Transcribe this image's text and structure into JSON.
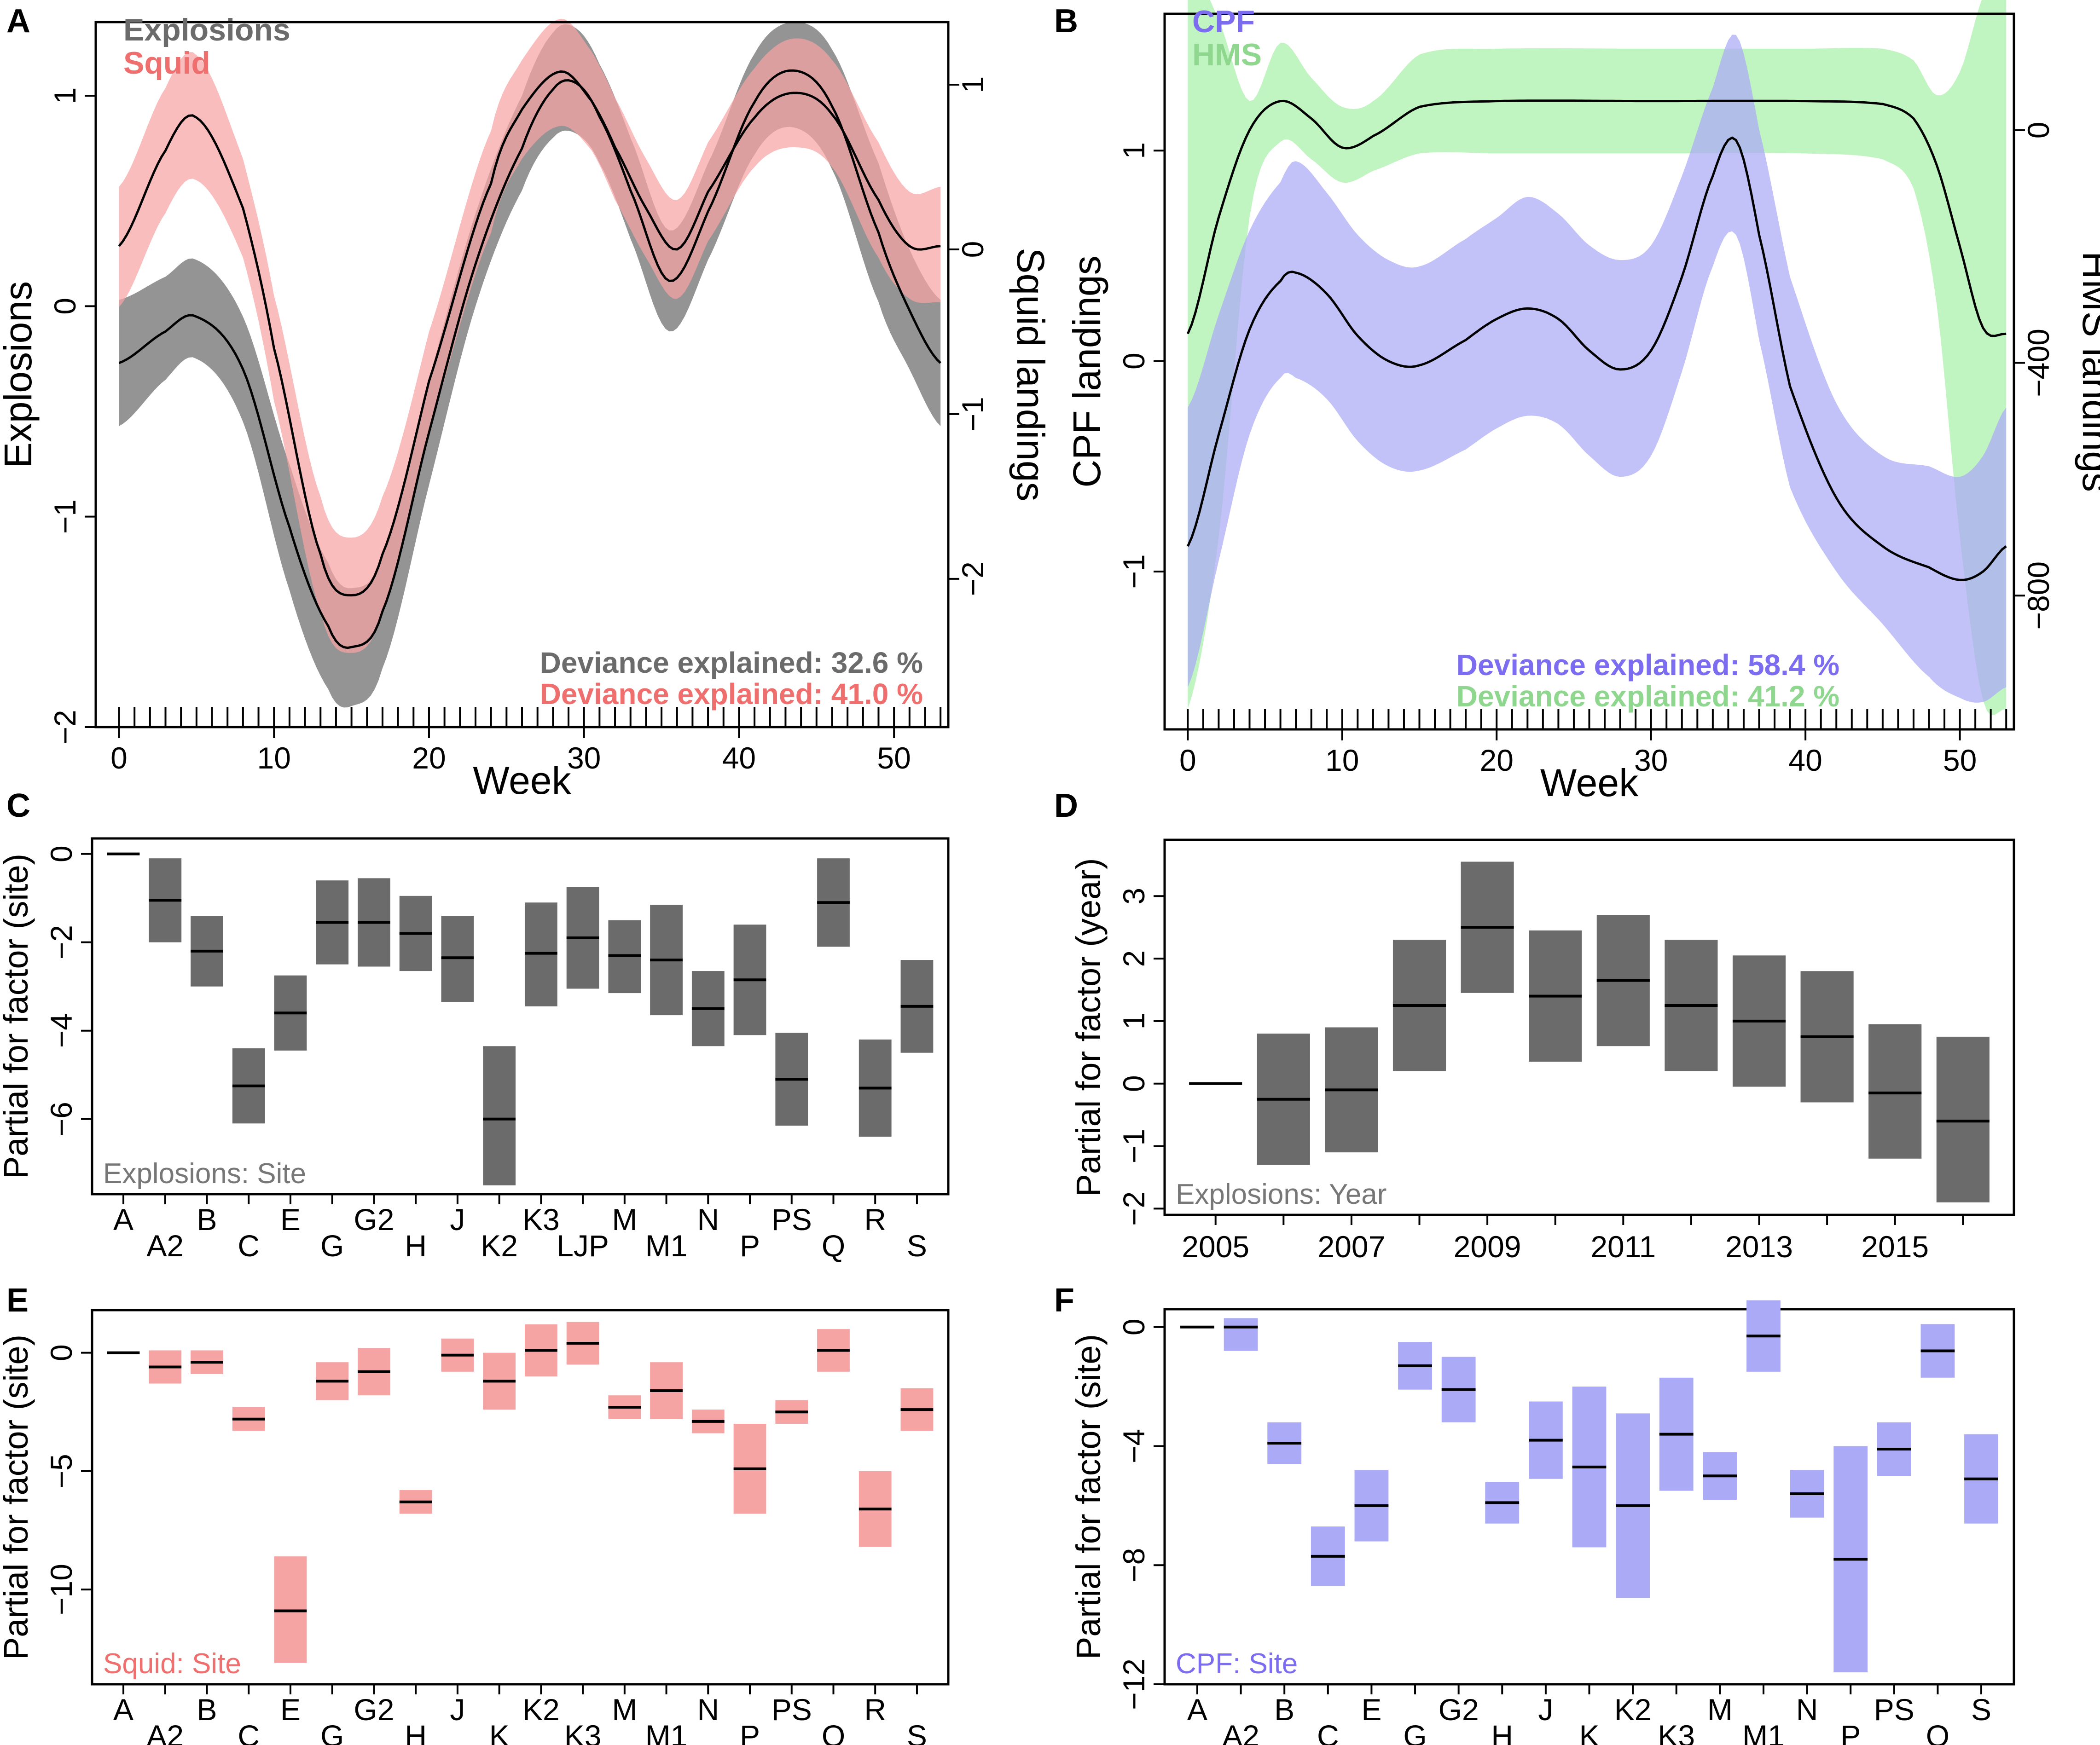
{
  "chart_data": [
    {
      "panel": "A",
      "type": "line",
      "xlabel": "Week",
      "ylabel": "Explosions",
      "ylabel_right": "Squid landings",
      "xlim": [
        -1.5,
        53.5
      ],
      "ylim": [
        -2.0,
        1.35
      ],
      "ylim_right": [
        -2.9,
        1.38
      ],
      "x_ticks": [
        0,
        10,
        20,
        30,
        40,
        50
      ],
      "y_ticks": [
        -2,
        -1,
        0,
        1
      ],
      "y_ticks_right": [
        -2,
        -1,
        0,
        1
      ],
      "rug": [
        0,
        1,
        2,
        3,
        4,
        5,
        6,
        7,
        8,
        9,
        10,
        11,
        12,
        13,
        14,
        15,
        16,
        17,
        18,
        19,
        20,
        21,
        22,
        23,
        24,
        25,
        26,
        27,
        28,
        29,
        30,
        31,
        32,
        33,
        34,
        35,
        36,
        37,
        38,
        39,
        40,
        41,
        42,
        43,
        44,
        45,
        46,
        47,
        48,
        49,
        50,
        51,
        52,
        53
      ],
      "legend": [
        {
          "label": "Explosions",
          "color": "#6b6b6b"
        },
        {
          "label": "Squid",
          "color": "#ef6f6f"
        }
      ],
      "annotations": [
        {
          "text": "Deviance explained: 32.6 %",
          "color": "#6b6b6b"
        },
        {
          "text": "Deviance explained: 41.0 %",
          "color": "#ef6f6f"
        }
      ],
      "series": [
        {
          "name": "Explosions",
          "axis": "left",
          "band_color": "#6b6b6b",
          "x": [
            0,
            3,
            5,
            8,
            11,
            13.5,
            15,
            17,
            20,
            23,
            26,
            28,
            29.5,
            31,
            33,
            35.5,
            38,
            41,
            43.5,
            46,
            49,
            51,
            53
          ],
          "y": [
            -0.27,
            -0.12,
            -0.05,
            -0.3,
            -1.05,
            -1.52,
            -1.62,
            -1.45,
            -0.6,
            0.2,
            0.75,
            1.03,
            1.06,
            0.9,
            0.55,
            0.12,
            0.45,
            0.97,
            1.12,
            0.95,
            0.35,
            -0.02,
            -0.27
          ],
          "lower": [
            -0.57,
            -0.35,
            -0.25,
            -0.55,
            -1.35,
            -1.82,
            -1.9,
            -1.72,
            -0.85,
            0.0,
            0.55,
            0.8,
            0.82,
            0.68,
            0.32,
            -0.12,
            0.22,
            0.72,
            0.85,
            0.65,
            0.02,
            -0.3,
            -0.57
          ],
          "upper": [
            0.03,
            0.14,
            0.22,
            -0.05,
            -0.75,
            -1.22,
            -1.34,
            -1.18,
            -0.35,
            0.44,
            1.0,
            1.3,
            1.32,
            1.15,
            0.8,
            0.36,
            0.68,
            1.2,
            1.35,
            1.22,
            0.68,
            0.27,
            0.03
          ]
        },
        {
          "name": "Squid",
          "axis": "right",
          "band_color": "#f6a3a3",
          "x": [
            0,
            3,
            5,
            8,
            10,
            13,
            15,
            17,
            20,
            24,
            26,
            28.5,
            30.5,
            32,
            34,
            36,
            38,
            41,
            43.5,
            46,
            49,
            51,
            53
          ],
          "y": [
            0.02,
            0.6,
            0.8,
            0.25,
            -0.6,
            -1.85,
            -2.1,
            -1.85,
            -0.8,
            0.4,
            0.85,
            1.08,
            0.9,
            0.62,
            0.25,
            0.0,
            0.35,
            0.8,
            0.95,
            0.82,
            0.3,
            0.02,
            0.02
          ],
          "lower": [
            -0.35,
            0.22,
            0.42,
            -0.05,
            -0.92,
            -2.2,
            -2.45,
            -2.2,
            -1.1,
            0.1,
            0.55,
            0.75,
            0.6,
            0.3,
            -0.05,
            -0.3,
            0.05,
            0.5,
            0.62,
            0.5,
            -0.05,
            -0.3,
            -0.32
          ],
          "upper": [
            0.38,
            0.98,
            1.18,
            0.55,
            -0.28,
            -1.5,
            -1.75,
            -1.5,
            -0.5,
            0.72,
            1.15,
            1.4,
            1.2,
            0.92,
            0.55,
            0.3,
            0.65,
            1.1,
            1.28,
            1.15,
            0.65,
            0.35,
            0.38
          ]
        }
      ]
    },
    {
      "panel": "B",
      "type": "line",
      "xlabel": "Week",
      "ylabel": "CPF landings",
      "ylabel_right": "HMS landings",
      "xlim": [
        -1.5,
        53.5
      ],
      "ylim": [
        -1.75,
        1.65
      ],
      "ylim_right": [
        -1030,
        200
      ],
      "x_ticks": [
        0,
        10,
        20,
        30,
        40,
        50
      ],
      "y_ticks": [
        -1,
        0,
        1
      ],
      "y_ticks_right": [
        -800,
        -400,
        0
      ],
      "rug": [
        0,
        1,
        2,
        3,
        4,
        5,
        6,
        7,
        8,
        9,
        10,
        11,
        12,
        13,
        14,
        15,
        16,
        17,
        18,
        19,
        20,
        21,
        22,
        23,
        24,
        25,
        26,
        27,
        28,
        29,
        30,
        31,
        32,
        33,
        34,
        35,
        36,
        37,
        38,
        39,
        40,
        41,
        42,
        43,
        44,
        45,
        46,
        47,
        48,
        49,
        50,
        51,
        52,
        53
      ],
      "legend": [
        {
          "label": "CPF",
          "color": "#7b6cf0"
        },
        {
          "label": "HMS",
          "color": "#8fd68f"
        }
      ],
      "annotations": [
        {
          "text": "Deviance explained: 58.4 %",
          "color": "#7b6cf0"
        },
        {
          "text": "Deviance explained: 41.2 %",
          "color": "#8fd68f"
        }
      ],
      "series": [
        {
          "name": "HMS",
          "axis": "right",
          "band_color": "#a8f0a8",
          "x": [
            0,
            2,
            4,
            6,
            8,
            10,
            12,
            15,
            20,
            30,
            40,
            45,
            47,
            48.5,
            50,
            51.5,
            53
          ],
          "y": [
            -350,
            -150,
            0,
            50,
            20,
            -30,
            -10,
            40,
            50,
            50,
            50,
            45,
            20,
            -60,
            -200,
            -340,
            -350
          ],
          "lower": [
            -995,
            -700,
            -150,
            -20,
            -50,
            -90,
            -70,
            -40,
            -40,
            -40,
            -40,
            -50,
            -100,
            -300,
            -700,
            -980,
            -995
          ],
          "upper": [
            290,
            190,
            50,
            150,
            90,
            40,
            50,
            130,
            140,
            140,
            140,
            140,
            120,
            60,
            100,
            230,
            290
          ]
        },
        {
          "name": "CPF",
          "axis": "left",
          "band_color": "#aaaaf6",
          "x": [
            0,
            2,
            4,
            6,
            7,
            9,
            11,
            13,
            15,
            18,
            20,
            22,
            24,
            26,
            28,
            30,
            32,
            34,
            35.5,
            37,
            39,
            42,
            45,
            48,
            50,
            51.5,
            53
          ],
          "y": [
            -0.88,
            -0.35,
            0.15,
            0.38,
            0.42,
            0.32,
            0.12,
            0.0,
            -0.02,
            0.1,
            0.2,
            0.25,
            0.2,
            0.05,
            -0.04,
            0.05,
            0.4,
            0.88,
            1.05,
            0.6,
            -0.12,
            -0.65,
            -0.88,
            -0.98,
            -1.04,
            -1.0,
            -0.88
          ],
          "lower": [
            -1.55,
            -0.95,
            -0.35,
            -0.08,
            -0.08,
            -0.18,
            -0.38,
            -0.5,
            -0.52,
            -0.42,
            -0.32,
            -0.26,
            -0.3,
            -0.45,
            -0.55,
            -0.45,
            -0.05,
            0.45,
            0.6,
            0.1,
            -0.6,
            -1.0,
            -1.25,
            -1.5,
            -1.6,
            -1.62,
            -1.55
          ],
          "upper": [
            -0.22,
            0.22,
            0.62,
            0.85,
            0.95,
            0.8,
            0.6,
            0.48,
            0.45,
            0.58,
            0.68,
            0.78,
            0.7,
            0.55,
            0.48,
            0.55,
            0.88,
            1.3,
            1.55,
            1.1,
            0.4,
            -0.2,
            -0.45,
            -0.5,
            -0.55,
            -0.45,
            -0.22
          ]
        }
      ]
    },
    {
      "panel": "C",
      "type": "bar",
      "ylabel": "Partial for factor (site)",
      "inset_label": "Explosions: Site",
      "color": "#6b6b6b",
      "ylim": [
        -7.7,
        0.35
      ],
      "y_ticks": [
        -6,
        -4,
        -2,
        0
      ],
      "categories": [
        "A",
        "A2",
        "B",
        "C",
        "E",
        "G",
        "G2",
        "H",
        "J",
        "K2",
        "K3",
        "LJP",
        "M",
        "M1",
        "N",
        "P",
        "PS",
        "Q",
        "R",
        "S"
      ],
      "values": [
        0,
        -1.05,
        -2.2,
        -5.25,
        -3.6,
        -1.55,
        -1.55,
        -1.8,
        -2.35,
        -6.0,
        -2.25,
        -1.9,
        -2.3,
        -2.4,
        -3.5,
        -2.85,
        -5.1,
        -1.1,
        -5.3,
        -3.45
      ],
      "lower": [
        0,
        -2.0,
        -3.0,
        -6.1,
        -4.45,
        -2.5,
        -2.55,
        -2.65,
        -3.35,
        -7.5,
        -3.45,
        -3.05,
        -3.15,
        -3.65,
        -4.35,
        -4.1,
        -6.15,
        -2.1,
        -6.4,
        -4.5
      ],
      "upper": [
        0,
        -0.1,
        -1.4,
        -4.4,
        -2.75,
        -0.6,
        -0.55,
        -0.95,
        -1.4,
        -4.35,
        -1.1,
        -0.75,
        -1.5,
        -1.15,
        -2.65,
        -1.6,
        -4.05,
        -0.1,
        -4.2,
        -2.4
      ]
    },
    {
      "panel": "D",
      "type": "bar",
      "ylabel": "Partial for factor (year)",
      "inset_label": "Explosions: Year",
      "color": "#6b6b6b",
      "ylim": [
        -2.1,
        3.9
      ],
      "y_ticks": [
        -2,
        -1,
        0,
        1,
        2,
        3
      ],
      "categories": [
        "2005",
        "2006",
        "2007",
        "2008",
        "2009",
        "2010",
        "2011",
        "2012",
        "2013",
        "2014",
        "2015",
        "2016"
      ],
      "x_tick_labels": [
        "2005",
        "2007",
        "2009",
        "2011",
        "2013",
        "2015"
      ],
      "values": [
        0,
        -0.25,
        -0.1,
        1.25,
        2.5,
        1.4,
        1.65,
        1.25,
        1.0,
        0.75,
        -0.15,
        -0.6
      ],
      "lower": [
        0,
        -1.3,
        -1.1,
        0.2,
        1.45,
        0.35,
        0.6,
        0.2,
        -0.05,
        -0.3,
        -1.2,
        -1.9
      ],
      "upper": [
        0,
        0.8,
        0.9,
        2.3,
        3.55,
        2.45,
        2.7,
        2.3,
        2.05,
        1.8,
        0.95,
        0.75
      ]
    },
    {
      "panel": "E",
      "type": "bar",
      "ylabel": "Partial for factor (site)",
      "inset_label": "Squid: Site",
      "color": "#f6a3a3",
      "ylim": [
        -14.0,
        1.8
      ],
      "y_ticks": [
        -10,
        -5,
        0
      ],
      "categories": [
        "A",
        "A2",
        "B",
        "C",
        "E",
        "G",
        "G2",
        "H",
        "J",
        "K",
        "K2",
        "K3",
        "M",
        "M1",
        "N",
        "P",
        "PS",
        "Q",
        "R",
        "S"
      ],
      "values": [
        0,
        -0.6,
        -0.4,
        -2.8,
        -10.9,
        -1.2,
        -0.8,
        -6.3,
        -0.1,
        -1.2,
        0.1,
        0.4,
        -2.3,
        -1.6,
        -2.9,
        -4.9,
        -2.5,
        0.1,
        -6.6,
        -2.4
      ],
      "lower": [
        0,
        -1.3,
        -0.9,
        -3.3,
        -13.1,
        -2.0,
        -1.8,
        -6.8,
        -0.8,
        -2.4,
        -1.0,
        -0.5,
        -2.8,
        -2.8,
        -3.4,
        -6.8,
        -3.0,
        -0.8,
        -8.2,
        -3.3
      ],
      "upper": [
        0,
        0.1,
        0.1,
        -2.3,
        -8.6,
        -0.4,
        0.2,
        -5.8,
        0.6,
        0.0,
        1.2,
        1.3,
        -1.8,
        -0.4,
        -2.4,
        -3.0,
        -2.0,
        1.0,
        -5.0,
        -1.5
      ]
    },
    {
      "panel": "F",
      "type": "bar",
      "ylabel": "Partial for factor (site)",
      "inset_label": "CPF: Site",
      "color": "#aaaaf6",
      "ylim": [
        -12.0,
        0.6
      ],
      "y_ticks": [
        -12,
        -8,
        -4,
        0
      ],
      "categories": [
        "A",
        "A2",
        "B",
        "C",
        "E",
        "G",
        "G2",
        "H",
        "J",
        "K",
        "K2",
        "K3",
        "M",
        "M1",
        "N",
        "P",
        "PS",
        "Q",
        "S"
      ],
      "values": [
        0,
        0.0,
        -3.9,
        -7.7,
        -6.0,
        -1.3,
        -2.1,
        -5.9,
        -3.8,
        -4.7,
        -6.0,
        -3.6,
        -5.0,
        -0.3,
        -5.6,
        -7.8,
        -4.1,
        -0.8,
        -5.1
      ],
      "lower": [
        0,
        -0.8,
        -4.6,
        -8.7,
        -7.2,
        -2.1,
        -3.2,
        -6.6,
        -5.1,
        -7.4,
        -9.1,
        -5.5,
        -5.8,
        -1.5,
        -6.4,
        -11.6,
        -5.0,
        -1.7,
        -6.6
      ],
      "upper": [
        0,
        0.3,
        -3.2,
        -6.7,
        -4.8,
        -0.5,
        -1.0,
        -5.2,
        -2.5,
        -2.0,
        -2.9,
        -1.7,
        -4.2,
        0.9,
        -4.8,
        -4.0,
        -3.2,
        0.1,
        -3.6
      ]
    }
  ]
}
